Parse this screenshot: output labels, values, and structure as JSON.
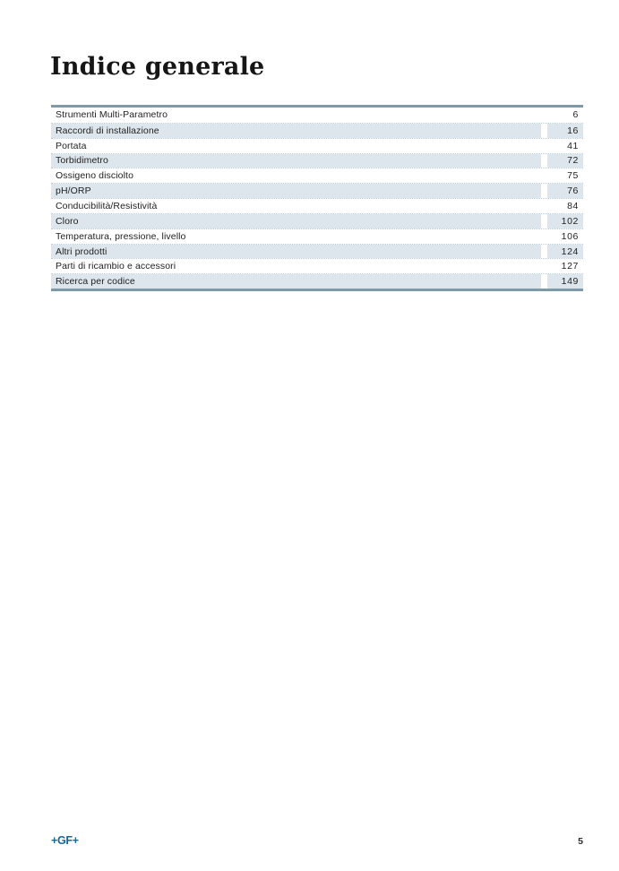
{
  "page": {
    "title": "Indice generale",
    "footer": {
      "logo": "+GF+",
      "page_number": "5"
    },
    "colors": {
      "row_shade": "#dde6ec",
      "rule_blue": "#7d9aab",
      "logo_blue": "#16689b",
      "text": "#1f1f1f"
    }
  },
  "toc": {
    "entries": [
      {
        "label": "Strumenti Multi-Parametro",
        "page": "6"
      },
      {
        "label": "Raccordi di installazione",
        "page": "16"
      },
      {
        "label": "Portata",
        "page": "41"
      },
      {
        "label": "Torbidimetro",
        "page": "72"
      },
      {
        "label": "Ossigeno disciolto",
        "page": "75"
      },
      {
        "label": "pH/ORP",
        "page": "76"
      },
      {
        "label": "Conducibilità/Resistività",
        "page": "84"
      },
      {
        "label": "Cloro",
        "page": "102"
      },
      {
        "label": "Temperatura, pressione, livello",
        "page": "106"
      },
      {
        "label": "Altri prodotti",
        "page": "124"
      },
      {
        "label": "Parti di ricambio e accessori",
        "page": "127"
      },
      {
        "label": "Ricerca per codice",
        "page": "149"
      }
    ]
  }
}
